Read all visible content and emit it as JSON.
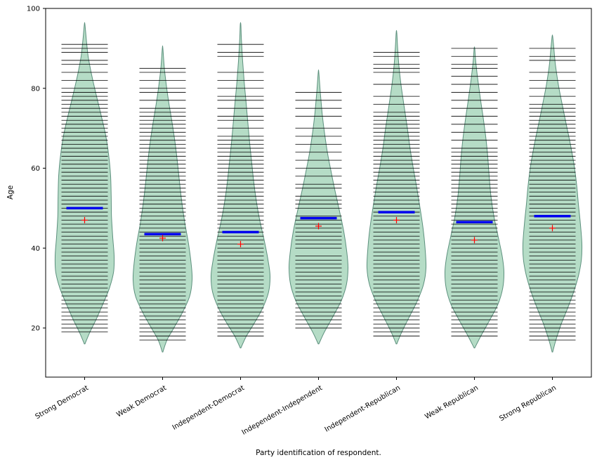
{
  "figure": {
    "background": "#ffffff"
  },
  "chart_data": {
    "type": "violin",
    "title": "",
    "xlabel": "Party identification of respondent.",
    "ylabel": "Age",
    "ylim": [
      7.7,
      100
    ],
    "yticks": [
      20,
      40,
      60,
      80,
      100
    ],
    "grid": false,
    "legend": "none",
    "violin_fill": "#b5dcc6",
    "violin_edge": "#5c907d",
    "median_color": "#0000ee",
    "mean_color": "#ff0000",
    "obs_line_color": "#000000",
    "categories": [
      "Strong Democrat",
      "Weak Democrat",
      "Independent-Democrat",
      "Independent-Independent",
      "Independent-Republican",
      "Weak Republican",
      "Strong Republican"
    ],
    "violins": [
      {
        "name": "Strong Democrat",
        "median": 50,
        "mean": 47,
        "support": [
          16,
          96
        ],
        "density": [
          [
            16,
            0.01
          ],
          [
            19,
            0.18
          ],
          [
            22,
            0.38
          ],
          [
            26,
            0.62
          ],
          [
            30,
            0.84
          ],
          [
            34,
            0.98
          ],
          [
            38,
            1.0
          ],
          [
            43,
            0.95
          ],
          [
            48,
            0.91
          ],
          [
            53,
            0.9
          ],
          [
            58,
            0.88
          ],
          [
            63,
            0.82
          ],
          [
            68,
            0.72
          ],
          [
            72,
            0.6
          ],
          [
            76,
            0.47
          ],
          [
            80,
            0.34
          ],
          [
            84,
            0.22
          ],
          [
            88,
            0.12
          ],
          [
            92,
            0.06
          ],
          [
            96,
            0.01
          ]
        ],
        "observations": [
          19,
          20,
          21,
          22,
          23,
          24,
          25,
          26,
          27,
          28,
          29,
          30,
          31,
          32,
          33,
          34,
          35,
          36,
          37,
          38,
          39,
          40,
          41,
          42,
          43,
          44,
          45,
          46,
          47,
          48,
          49,
          50,
          51,
          52,
          53,
          54,
          55,
          56,
          57,
          58,
          59,
          60,
          61,
          62,
          63,
          64,
          65,
          66,
          67,
          68,
          69,
          70,
          71,
          72,
          73,
          74,
          75,
          76,
          77,
          78,
          79,
          80,
          82,
          84,
          86,
          87,
          89,
          90,
          91
        ]
      },
      {
        "name": "Weak Democrat",
        "median": 43.5,
        "mean": 42.5,
        "support": [
          14,
          90
        ],
        "density": [
          [
            14,
            0.01
          ],
          [
            17,
            0.15
          ],
          [
            20,
            0.38
          ],
          [
            24,
            0.68
          ],
          [
            28,
            0.92
          ],
          [
            32,
            1.0
          ],
          [
            36,
            0.97
          ],
          [
            41,
            0.88
          ],
          [
            46,
            0.76
          ],
          [
            51,
            0.66
          ],
          [
            56,
            0.58
          ],
          [
            61,
            0.51
          ],
          [
            66,
            0.43
          ],
          [
            71,
            0.33
          ],
          [
            76,
            0.22
          ],
          [
            80,
            0.14
          ],
          [
            85,
            0.06
          ],
          [
            90,
            0.01
          ]
        ],
        "observations": [
          17,
          18,
          19,
          20,
          21,
          22,
          23,
          24,
          25,
          26,
          27,
          28,
          29,
          30,
          31,
          32,
          33,
          34,
          35,
          36,
          37,
          38,
          39,
          40,
          41,
          42,
          43,
          44,
          45,
          46,
          47,
          48,
          49,
          50,
          51,
          52,
          53,
          54,
          55,
          56,
          57,
          58,
          59,
          60,
          61,
          62,
          63,
          64,
          65,
          66,
          67,
          68,
          69,
          70,
          71,
          72,
          73,
          74,
          75,
          77,
          79,
          80,
          82,
          84,
          85
        ]
      },
      {
        "name": "Independent-Democrat",
        "median": 44,
        "mean": 41,
        "support": [
          15,
          96
        ],
        "density": [
          [
            15,
            0.01
          ],
          [
            18,
            0.2
          ],
          [
            21,
            0.45
          ],
          [
            25,
            0.75
          ],
          [
            29,
            0.95
          ],
          [
            33,
            1.0
          ],
          [
            37,
            0.93
          ],
          [
            42,
            0.8
          ],
          [
            47,
            0.65
          ],
          [
            52,
            0.53
          ],
          [
            57,
            0.44
          ],
          [
            62,
            0.37
          ],
          [
            67,
            0.3
          ],
          [
            72,
            0.24
          ],
          [
            77,
            0.18
          ],
          [
            82,
            0.12
          ],
          [
            87,
            0.07
          ],
          [
            92,
            0.03
          ],
          [
            96,
            0.01
          ]
        ],
        "observations": [
          18,
          19,
          20,
          21,
          22,
          23,
          24,
          25,
          26,
          27,
          28,
          29,
          30,
          31,
          32,
          33,
          34,
          35,
          36,
          37,
          38,
          39,
          40,
          41,
          42,
          43,
          44,
          45,
          46,
          47,
          48,
          49,
          50,
          51,
          52,
          53,
          54,
          55,
          56,
          57,
          58,
          59,
          60,
          61,
          62,
          63,
          64,
          65,
          66,
          67,
          68,
          70,
          72,
          73,
          75,
          77,
          78,
          80,
          82,
          84,
          88,
          89,
          91
        ]
      },
      {
        "name": "Independent-Independent",
        "median": 47.5,
        "mean": 45.5,
        "support": [
          16,
          84
        ],
        "density": [
          [
            16,
            0.01
          ],
          [
            19,
            0.2
          ],
          [
            23,
            0.5
          ],
          [
            27,
            0.78
          ],
          [
            31,
            0.95
          ],
          [
            35,
            1.0
          ],
          [
            39,
            0.96
          ],
          [
            44,
            0.86
          ],
          [
            49,
            0.72
          ],
          [
            54,
            0.57
          ],
          [
            59,
            0.43
          ],
          [
            64,
            0.3
          ],
          [
            69,
            0.2
          ],
          [
            74,
            0.12
          ],
          [
            79,
            0.06
          ],
          [
            84,
            0.01
          ]
        ],
        "observations": [
          20,
          21,
          22,
          23,
          24,
          25,
          26,
          27,
          28,
          29,
          30,
          31,
          32,
          33,
          34,
          35,
          36,
          37,
          38,
          40,
          41,
          42,
          43,
          44,
          45,
          46,
          47,
          48,
          50,
          51,
          52,
          53,
          55,
          56,
          58,
          60,
          62,
          64,
          66,
          68,
          70,
          73,
          75,
          77,
          79
        ]
      },
      {
        "name": "Independent-Republican",
        "median": 49,
        "mean": 47,
        "support": [
          16,
          94
        ],
        "density": [
          [
            16,
            0.01
          ],
          [
            19,
            0.18
          ],
          [
            23,
            0.45
          ],
          [
            27,
            0.72
          ],
          [
            31,
            0.92
          ],
          [
            35,
            1.0
          ],
          [
            40,
            0.97
          ],
          [
            45,
            0.9
          ],
          [
            50,
            0.8
          ],
          [
            55,
            0.69
          ],
          [
            60,
            0.57
          ],
          [
            65,
            0.46
          ],
          [
            70,
            0.37
          ],
          [
            75,
            0.27
          ],
          [
            80,
            0.17
          ],
          [
            85,
            0.09
          ],
          [
            90,
            0.04
          ],
          [
            94,
            0.01
          ]
        ],
        "observations": [
          18,
          19,
          20,
          21,
          22,
          23,
          24,
          25,
          26,
          27,
          28,
          29,
          30,
          31,
          32,
          33,
          34,
          35,
          36,
          37,
          38,
          39,
          40,
          41,
          42,
          43,
          44,
          45,
          46,
          47,
          48,
          49,
          50,
          51,
          52,
          53,
          54,
          55,
          56,
          57,
          58,
          59,
          60,
          61,
          62,
          63,
          64,
          65,
          66,
          67,
          68,
          69,
          70,
          71,
          72,
          73,
          74,
          76,
          78,
          81,
          84,
          85,
          86,
          88,
          89
        ]
      },
      {
        "name": "Weak Republican",
        "median": 46.5,
        "mean": 42,
        "support": [
          15,
          90
        ],
        "density": [
          [
            15,
            0.01
          ],
          [
            18,
            0.22
          ],
          [
            22,
            0.52
          ],
          [
            26,
            0.8
          ],
          [
            30,
            0.96
          ],
          [
            34,
            1.0
          ],
          [
            38,
            0.94
          ],
          [
            43,
            0.8
          ],
          [
            48,
            0.66
          ],
          [
            53,
            0.56
          ],
          [
            58,
            0.5
          ],
          [
            63,
            0.45
          ],
          [
            68,
            0.38
          ],
          [
            73,
            0.29
          ],
          [
            78,
            0.19
          ],
          [
            83,
            0.1
          ],
          [
            87,
            0.04
          ],
          [
            90,
            0.01
          ]
        ],
        "observations": [
          18,
          19,
          20,
          21,
          22,
          23,
          24,
          25,
          26,
          27,
          28,
          29,
          30,
          31,
          32,
          33,
          34,
          35,
          36,
          37,
          38,
          39,
          40,
          41,
          42,
          43,
          44,
          45,
          46,
          47,
          48,
          49,
          50,
          51,
          52,
          53,
          54,
          55,
          56,
          57,
          58,
          59,
          60,
          61,
          62,
          63,
          64,
          65,
          67,
          69,
          71,
          73,
          75,
          77,
          79,
          81,
          83,
          85,
          86,
          88,
          90
        ]
      },
      {
        "name": "Strong Republican",
        "median": 48,
        "mean": 45,
        "support": [
          14,
          93
        ],
        "density": [
          [
            14,
            0.01
          ],
          [
            17,
            0.12
          ],
          [
            21,
            0.3
          ],
          [
            25,
            0.52
          ],
          [
            29,
            0.72
          ],
          [
            33,
            0.88
          ],
          [
            37,
            0.98
          ],
          [
            41,
            1.0
          ],
          [
            46,
            0.95
          ],
          [
            51,
            0.88
          ],
          [
            56,
            0.82
          ],
          [
            61,
            0.73
          ],
          [
            66,
            0.61
          ],
          [
            71,
            0.47
          ],
          [
            76,
            0.33
          ],
          [
            81,
            0.2
          ],
          [
            86,
            0.1
          ],
          [
            90,
            0.05
          ],
          [
            93,
            0.01
          ]
        ],
        "observations": [
          17,
          18,
          19,
          20,
          21,
          22,
          23,
          24,
          25,
          26,
          27,
          28,
          29,
          30,
          31,
          32,
          33,
          34,
          35,
          36,
          37,
          38,
          39,
          40,
          41,
          42,
          43,
          44,
          45,
          46,
          47,
          48,
          49,
          50,
          51,
          52,
          53,
          54,
          55,
          56,
          57,
          58,
          59,
          60,
          61,
          62,
          63,
          64,
          65,
          66,
          67,
          68,
          69,
          70,
          71,
          72,
          73,
          74,
          75,
          76,
          78,
          80,
          82,
          84,
          87,
          88,
          90
        ]
      }
    ]
  }
}
